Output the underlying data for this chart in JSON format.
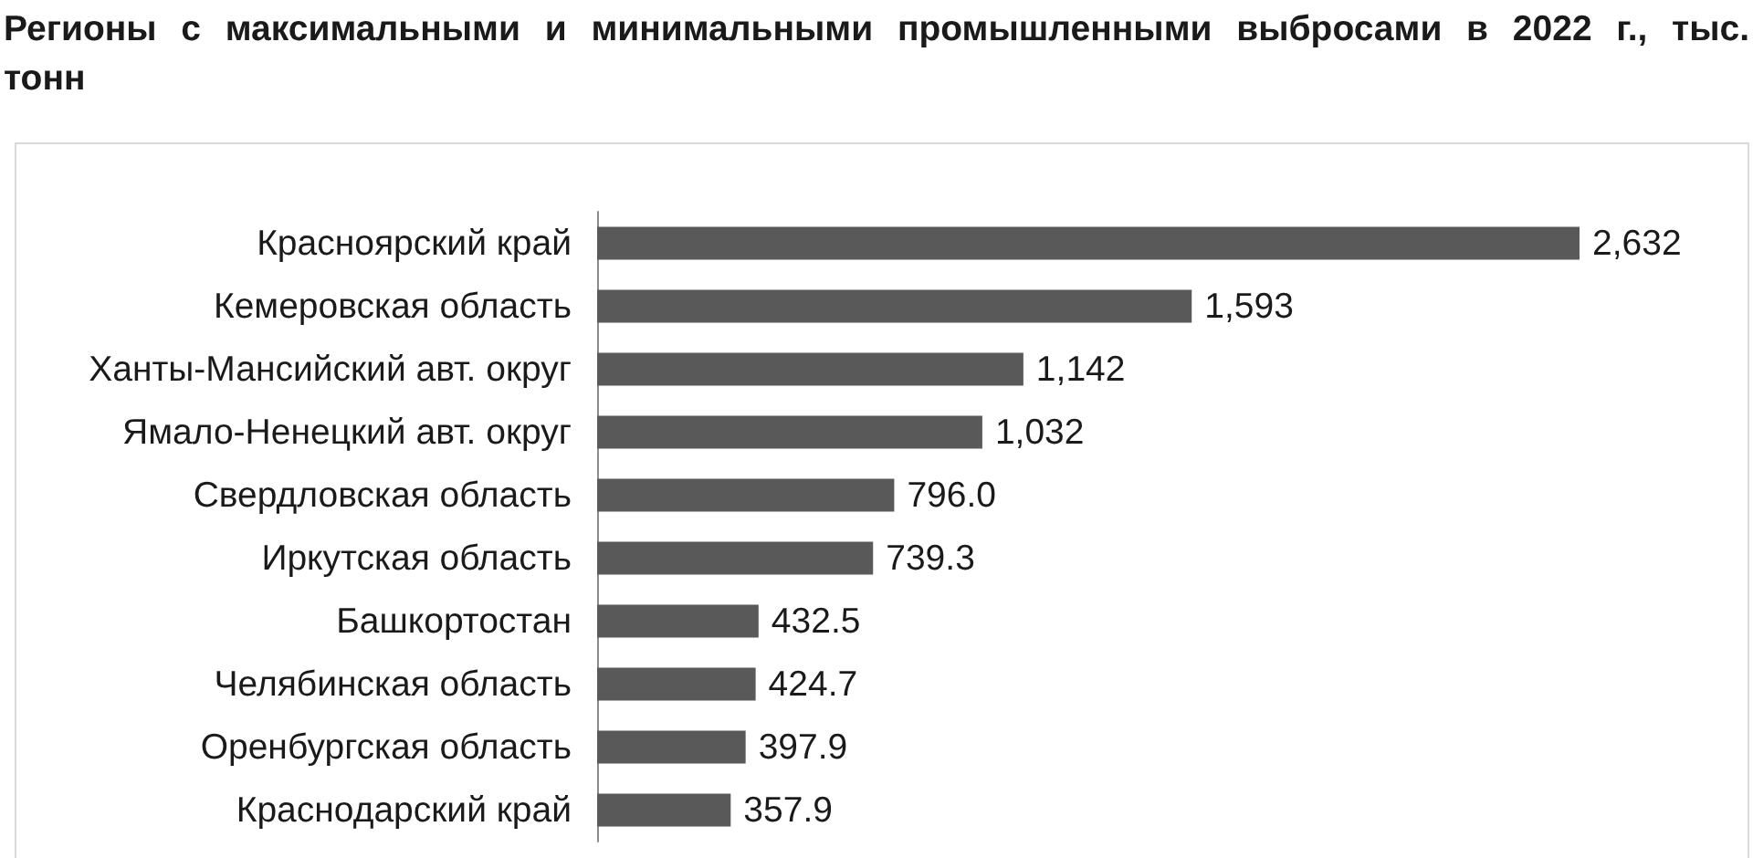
{
  "chart_data": {
    "type": "bar",
    "orientation": "horizontal",
    "title": "Регионы с максимальными и минимальными промышленными выбросами в 2022 г., тыс. тонн",
    "categories": [
      "Красноярский край",
      "Кемеровская область",
      "Ханты-Мансийский авт. округ",
      "Ямало-Ненецкий авт. округ",
      "Свердловская область",
      "Иркутская область",
      "Башкортостан",
      "Челябинская область",
      "Оренбургская область",
      "Краснодарский край"
    ],
    "values": [
      2632,
      1593,
      1142,
      1032,
      796.0,
      739.3,
      432.5,
      424.7,
      397.9,
      357.9
    ],
    "value_labels": [
      "2,632",
      "1,593",
      "1,142",
      "1,032",
      "796.0",
      "739.3",
      "432.5",
      "424.7",
      "397.9",
      "357.9"
    ],
    "color": "#595959"
  }
}
